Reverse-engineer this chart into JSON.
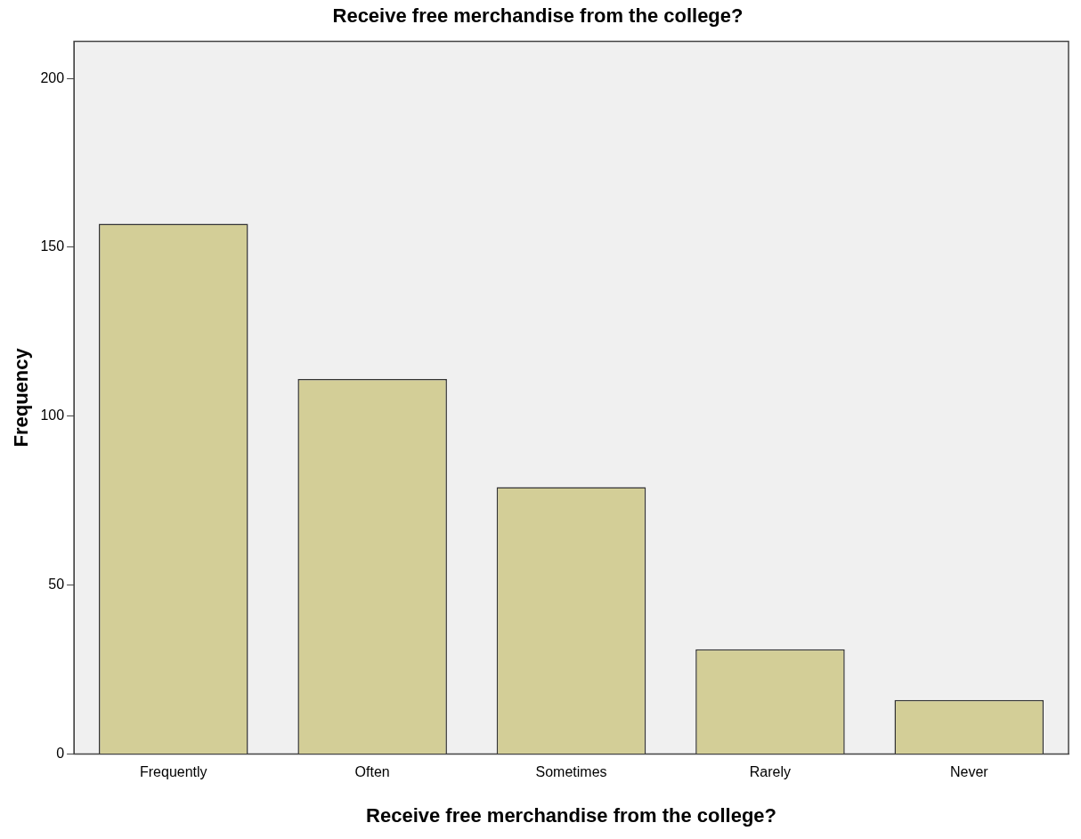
{
  "chart_data": {
    "type": "bar",
    "title": "Receive free merchandise from the college?",
    "xlabel": "Receive free merchandise from the college?",
    "ylabel": "Frequency",
    "categories": [
      "Frequently",
      "Often",
      "Sometimes",
      "Rarely",
      "Never"
    ],
    "values": [
      157,
      111,
      79,
      31,
      16
    ],
    "color": "#d3ce97",
    "ylim": [
      0,
      211
    ],
    "yticks": [
      0,
      50,
      100,
      150,
      200
    ],
    "grid": false,
    "legend": false
  }
}
